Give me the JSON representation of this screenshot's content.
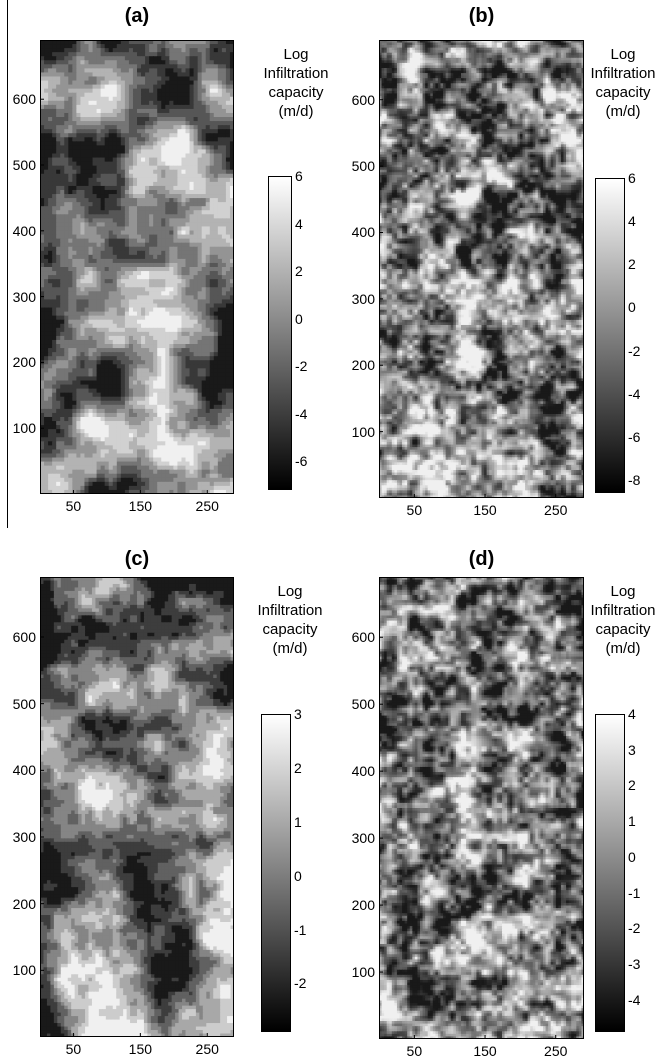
{
  "panels": [
    {
      "label": "(a)",
      "colorbar_title": [
        "Log",
        "Infiltration",
        "capacity",
        "(m/d)"
      ],
      "colorbar_ticks": [
        "6",
        "4",
        "2",
        "0",
        "-2",
        "-4",
        "-6"
      ],
      "colorbar_range": [
        -7.2,
        6
      ],
      "seed": 11,
      "field_style": "smooth"
    },
    {
      "label": "(b)",
      "colorbar_title": [
        "Log",
        "Infiltration",
        "capacity",
        "(m/d)"
      ],
      "colorbar_ticks": [
        "6",
        "4",
        "2",
        "0",
        "-2",
        "-4",
        "-6",
        "-8"
      ],
      "colorbar_range": [
        -8.6,
        6
      ],
      "seed": 23,
      "field_style": "fine"
    },
    {
      "label": "(c)",
      "colorbar_title": [
        "Log",
        "Infiltration",
        "capacity",
        "(m/d)"
      ],
      "colorbar_ticks": [
        "3",
        "2",
        "1",
        "0",
        "-1",
        "-2"
      ],
      "colorbar_range": [
        -2.9,
        3
      ],
      "seed": 37,
      "field_style": "blocky"
    },
    {
      "label": "(d)",
      "colorbar_title": [
        "Log",
        "Infiltration",
        "capacity",
        "(m/d)"
      ],
      "colorbar_ticks": [
        "4",
        "3",
        "2",
        "1",
        "0",
        "-1",
        "-2",
        "-3",
        "-4"
      ],
      "colorbar_range": [
        -4.9,
        4
      ],
      "seed": 53,
      "field_style": "fine"
    }
  ],
  "chart_data": [
    {
      "type": "heatmap",
      "title": "(a)",
      "xlim": [
        0,
        290
      ],
      "ylim": [
        0,
        690
      ],
      "xticks": [
        50,
        150,
        250
      ],
      "yticks": [
        100,
        200,
        300,
        400,
        500,
        600
      ],
      "colorbar_label": "Log Infiltration capacity (m/d)",
      "colorbar_ticks": [
        6,
        4,
        2,
        0,
        -2,
        -4,
        -6
      ]
    },
    {
      "type": "heatmap",
      "title": "(b)",
      "xlim": [
        0,
        290
      ],
      "ylim": [
        0,
        690
      ],
      "xticks": [
        50,
        150,
        250
      ],
      "yticks": [
        100,
        200,
        300,
        400,
        500,
        600
      ],
      "colorbar_label": "Log Infiltration capacity (m/d)",
      "colorbar_ticks": [
        6,
        4,
        2,
        0,
        -2,
        -4,
        -6,
        -8
      ]
    },
    {
      "type": "heatmap",
      "title": "(c)",
      "xlim": [
        0,
        290
      ],
      "ylim": [
        0,
        690
      ],
      "xticks": [
        50,
        150,
        250
      ],
      "yticks": [
        100,
        200,
        300,
        400,
        500,
        600
      ],
      "colorbar_label": "Log Infiltration capacity (m/d)",
      "colorbar_ticks": [
        3,
        2,
        1,
        0,
        -1,
        -2
      ]
    },
    {
      "type": "heatmap",
      "title": "(d)",
      "xlim": [
        0,
        290
      ],
      "ylim": [
        0,
        690
      ],
      "xticks": [
        50,
        150,
        250
      ],
      "yticks": [
        100,
        200,
        300,
        400,
        500,
        600
      ],
      "colorbar_label": "Log Infiltration capacity (m/d)",
      "colorbar_ticks": [
        4,
        3,
        2,
        1,
        0,
        -1,
        -2,
        -3,
        -4
      ]
    }
  ],
  "axes": {
    "xticks": [
      "50",
      "150",
      "250"
    ],
    "yticks": [
      "100",
      "200",
      "300",
      "400",
      "500",
      "600"
    ]
  }
}
